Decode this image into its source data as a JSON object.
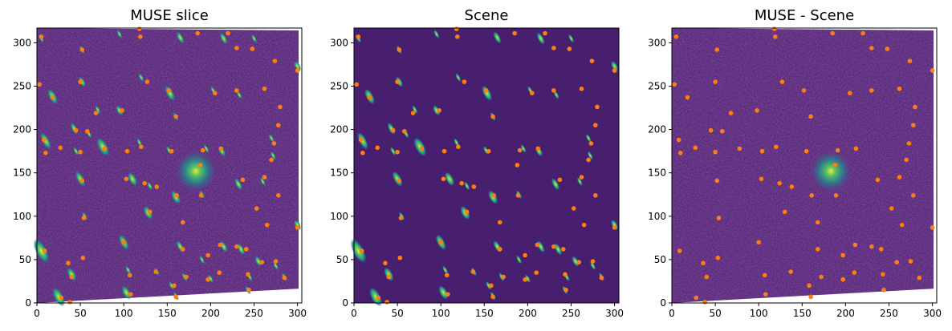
{
  "chart_data": [
    {
      "type": "heatmap",
      "title": "MUSE slice",
      "xlabel": "",
      "ylabel": "",
      "xlim": [
        0,
        305
      ],
      "ylim": [
        0,
        317
      ],
      "xticks": [
        "0",
        "50",
        "100",
        "150",
        "200",
        "250",
        "300"
      ],
      "yticks": [
        "0",
        "50",
        "100",
        "150",
        "200",
        "250",
        "300"
      ],
      "colormap": "viridis",
      "background": "noisy",
      "bright_source": [
        183,
        152
      ],
      "marker_color": "#ff7f0e"
    },
    {
      "type": "heatmap",
      "title": "Scene",
      "xlabel": "",
      "ylabel": "",
      "xlim": [
        0,
        305
      ],
      "ylim": [
        0,
        317
      ],
      "xticks": [
        "0",
        "50",
        "100",
        "150",
        "200",
        "250",
        "300"
      ],
      "yticks": [
        "0",
        "50",
        "100",
        "150",
        "200",
        "250",
        "300"
      ],
      "colormap": "viridis",
      "background": "flat",
      "marker_color": "#ff7f0e"
    },
    {
      "type": "heatmap",
      "title": "MUSE - Scene",
      "xlabel": "",
      "ylabel": "",
      "xlim": [
        0,
        305
      ],
      "ylim": [
        0,
        317
      ],
      "xticks": [
        "0",
        "50",
        "100",
        "150",
        "200",
        "250",
        "300"
      ],
      "yticks": [
        "0",
        "50",
        "100",
        "150",
        "200",
        "250",
        "300"
      ],
      "colormap": "viridis",
      "background": "noisy",
      "bright_source": [
        183,
        152
      ],
      "marker_color": "#ff7f0e"
    }
  ],
  "sources": [
    [
      5,
      307
    ],
    [
      52,
      292
    ],
    [
      119,
      307
    ],
    [
      185,
      311
    ],
    [
      220,
      311
    ],
    [
      230,
      294
    ],
    [
      248,
      293
    ],
    [
      274,
      279
    ],
    [
      300,
      268
    ],
    [
      3,
      252
    ],
    [
      50,
      255
    ],
    [
      127,
      255
    ],
    [
      152,
      245
    ],
    [
      205,
      242
    ],
    [
      230,
      245
    ],
    [
      262,
      247
    ],
    [
      18,
      237
    ],
    [
      68,
      219
    ],
    [
      98,
      222
    ],
    [
      160,
      215
    ],
    [
      45,
      199
    ],
    [
      58,
      198
    ],
    [
      8,
      188
    ],
    [
      27,
      179
    ],
    [
      120,
      180
    ],
    [
      155,
      175
    ],
    [
      191,
      176
    ],
    [
      212,
      178
    ],
    [
      273,
      184
    ],
    [
      278,
      205
    ],
    [
      280,
      226
    ],
    [
      10,
      173
    ],
    [
      78,
      178
    ],
    [
      50,
      174
    ],
    [
      104,
      175
    ],
    [
      270,
      165
    ],
    [
      237,
      142
    ],
    [
      262,
      145
    ],
    [
      188,
      159
    ],
    [
      189,
      124
    ],
    [
      253,
      109
    ],
    [
      278,
      124
    ],
    [
      52,
      141
    ],
    [
      103,
      143
    ],
    [
      124,
      138
    ],
    [
      138,
      134
    ],
    [
      161,
      124
    ],
    [
      130,
      105
    ],
    [
      168,
      93
    ],
    [
      265,
      90
    ],
    [
      300,
      87
    ],
    [
      54,
      98
    ],
    [
      100,
      70
    ],
    [
      168,
      62
    ],
    [
      197,
      55
    ],
    [
      211,
      67
    ],
    [
      230,
      65
    ],
    [
      241,
      62
    ],
    [
      259,
      47
    ],
    [
      275,
      48
    ],
    [
      53,
      52
    ],
    [
      36,
      46
    ],
    [
      9,
      60
    ],
    [
      107,
      32
    ],
    [
      40,
      30
    ],
    [
      137,
      36
    ],
    [
      197,
      27
    ],
    [
      158,
      20
    ],
    [
      172,
      30
    ],
    [
      210,
      35
    ],
    [
      243,
      33
    ],
    [
      285,
      29
    ],
    [
      28,
      6
    ],
    [
      108,
      10
    ],
    [
      160,
      7
    ],
    [
      244,
      15
    ],
    [
      38,
      1
    ],
    [
      118,
      316
    ]
  ],
  "objects": [
    [
      5,
      305,
      2,
      10
    ],
    [
      52,
      292,
      2,
      10
    ],
    [
      95,
      310,
      2,
      10
    ],
    [
      165,
      306,
      3,
      14
    ],
    [
      215,
      305,
      3,
      14
    ],
    [
      250,
      305,
      2,
      10
    ],
    [
      300,
      273,
      3,
      12
    ],
    [
      52,
      255,
      3,
      12
    ],
    [
      120,
      260,
      2,
      10
    ],
    [
      153,
      242,
      4,
      18
    ],
    [
      203,
      245,
      2,
      10
    ],
    [
      233,
      240,
      2,
      10
    ],
    [
      18,
      238,
      4,
      18
    ],
    [
      70,
      223,
      2,
      10
    ],
    [
      95,
      222,
      3,
      12
    ],
    [
      160,
      215,
      2,
      10
    ],
    [
      43,
      201,
      3,
      14
    ],
    [
      60,
      195,
      2,
      10
    ],
    [
      10,
      187,
      4,
      20
    ],
    [
      76,
      180,
      5,
      22
    ],
    [
      118,
      185,
      2,
      10
    ],
    [
      152,
      176,
      2,
      10
    ],
    [
      195,
      178,
      2,
      10
    ],
    [
      213,
      175,
      3,
      12
    ],
    [
      270,
      190,
      2,
      10
    ],
    [
      272,
      170,
      2,
      10
    ],
    [
      45,
      175,
      2,
      10
    ],
    [
      50,
      143,
      4,
      18
    ],
    [
      110,
      143,
      4,
      16
    ],
    [
      130,
      135,
      2,
      10
    ],
    [
      160,
      122,
      4,
      16
    ],
    [
      190,
      125,
      2,
      10
    ],
    [
      232,
      137,
      3,
      14
    ],
    [
      260,
      140,
      2,
      10
    ],
    [
      5,
      60,
      6,
      28
    ],
    [
      100,
      70,
      4,
      18
    ],
    [
      128,
      104,
      4,
      16
    ],
    [
      55,
      100,
      2,
      10
    ],
    [
      165,
      65,
      3,
      14
    ],
    [
      190,
      50,
      2,
      10
    ],
    [
      215,
      65,
      3,
      14
    ],
    [
      235,
      62,
      3,
      14
    ],
    [
      255,
      48,
      3,
      12
    ],
    [
      275,
      43,
      2,
      10
    ],
    [
      40,
      33,
      4,
      16
    ],
    [
      105,
      38,
      2,
      10
    ],
    [
      138,
      36,
      2,
      10
    ],
    [
      155,
      20,
      2,
      10
    ],
    [
      170,
      30,
      2,
      10
    ],
    [
      200,
      28,
      2,
      10
    ],
    [
      245,
      30,
      2,
      10
    ],
    [
      25,
      7,
      5,
      22
    ],
    [
      103,
      12,
      4,
      16
    ],
    [
      160,
      8,
      2,
      10
    ],
    [
      243,
      15,
      2,
      10
    ],
    [
      285,
      30,
      2,
      10
    ],
    [
      300,
      90,
      3,
      12
    ]
  ]
}
